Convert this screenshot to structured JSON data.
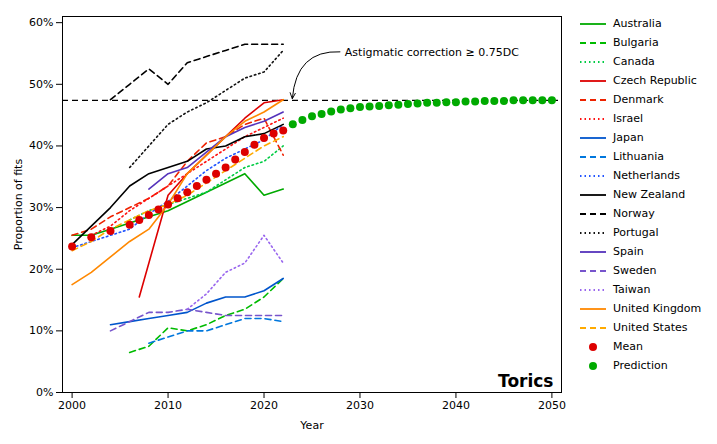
{
  "chart_data": {
    "type": "line",
    "xlabel": "Year",
    "ylabel": "Proportion of fits",
    "xlim": [
      1999,
      2051
    ],
    "ylim": [
      0.0,
      0.61
    ],
    "xticks": [
      2000,
      2010,
      2020,
      2030,
      2040,
      2050
    ],
    "yticks": [
      {
        "value": 0.0,
        "label": "0%"
      },
      {
        "value": 0.1,
        "label": "10%"
      },
      {
        "value": 0.2,
        "label": "20%"
      },
      {
        "value": 0.3,
        "label": "30%"
      },
      {
        "value": 0.4,
        "label": "40%"
      },
      {
        "value": 0.5,
        "label": "50%"
      },
      {
        "value": 0.6,
        "label": "60%"
      }
    ],
    "grid": false,
    "legend": "right",
    "reference_lines": [
      {
        "y": 0.474,
        "color": "#000000",
        "line_style": "dashed"
      }
    ],
    "annotations": [
      {
        "text": "Astigmatic correction ≥ 0.75DC",
        "x": 2023,
        "y": 0.474
      },
      {
        "text": "Torics"
      }
    ],
    "series": [
      {
        "name": "Australia",
        "type": "line",
        "color": "#00aa00",
        "line_style": "solid",
        "x": [
          2000,
          2002,
          2004,
          2006,
          2008,
          2010,
          2012,
          2014,
          2016,
          2018,
          2020,
          2022
        ],
        "values": [
          0.255,
          0.255,
          0.265,
          0.275,
          0.285,
          0.295,
          0.31,
          0.325,
          0.34,
          0.355,
          0.32,
          0.33
        ]
      },
      {
        "name": "Bulgaria",
        "type": "line",
        "color": "#00bb00",
        "line_style": "dashed",
        "x": [
          2006,
          2008,
          2010,
          2012,
          2014,
          2016,
          2018,
          2020,
          2022
        ],
        "values": [
          0.065,
          0.075,
          0.105,
          0.1,
          0.11,
          0.125,
          0.135,
          0.155,
          0.185
        ]
      },
      {
        "name": "Canada",
        "type": "line",
        "color": "#00cc44",
        "line_style": "dotted",
        "x": [
          2006,
          2008,
          2010,
          2012,
          2014,
          2016,
          2018,
          2020,
          2022
        ],
        "values": [
          0.28,
          0.295,
          0.305,
          0.315,
          0.325,
          0.345,
          0.365,
          0.375,
          0.4
        ]
      },
      {
        "name": "Czech Republic",
        "type": "line",
        "color": "#dd0000",
        "line_style": "solid",
        "x": [
          2007,
          2010,
          2012,
          2014,
          2016,
          2018,
          2020,
          2022
        ],
        "values": [
          0.155,
          0.32,
          0.355,
          0.385,
          0.415,
          0.445,
          0.47,
          0.475
        ]
      },
      {
        "name": "Denmark",
        "type": "line",
        "color": "#ee2200",
        "line_style": "dashed",
        "x": [
          2000,
          2002,
          2004,
          2006,
          2008,
          2010,
          2012,
          2014,
          2016,
          2018,
          2020,
          2022
        ],
        "values": [
          0.255,
          0.265,
          0.285,
          0.3,
          0.315,
          0.335,
          0.375,
          0.405,
          0.415,
          0.435,
          0.445,
          0.385
        ]
      },
      {
        "name": "Israel",
        "type": "line",
        "color": "#ff1111",
        "line_style": "dotted",
        "x": [
          2002,
          2004,
          2006,
          2008,
          2010,
          2012,
          2014,
          2016,
          2018,
          2020,
          2022
        ],
        "values": [
          0.255,
          0.27,
          0.295,
          0.315,
          0.335,
          0.355,
          0.375,
          0.395,
          0.415,
          0.43,
          0.445
        ]
      },
      {
        "name": "Japan",
        "type": "line",
        "color": "#0055cc",
        "line_style": "solid",
        "x": [
          2004,
          2006,
          2008,
          2010,
          2012,
          2014,
          2016,
          2018,
          2020,
          2022
        ],
        "values": [
          0.11,
          0.115,
          0.12,
          0.125,
          0.13,
          0.145,
          0.155,
          0.155,
          0.165,
          0.185
        ]
      },
      {
        "name": "Lithuania",
        "type": "line",
        "color": "#0077dd",
        "line_style": "dashed",
        "x": [
          2008,
          2010,
          2012,
          2014,
          2016,
          2018,
          2020,
          2022
        ],
        "values": [
          0.08,
          0.09,
          0.1,
          0.1,
          0.11,
          0.12,
          0.12,
          0.115
        ]
      },
      {
        "name": "Netherlands",
        "type": "line",
        "color": "#2255ff",
        "line_style": "dotted",
        "x": [
          2000,
          2002,
          2004,
          2006,
          2008,
          2010,
          2012,
          2014,
          2016,
          2018,
          2020,
          2022
        ],
        "values": [
          0.235,
          0.245,
          0.255,
          0.265,
          0.29,
          0.31,
          0.335,
          0.36,
          0.38,
          0.395,
          0.41,
          0.435
        ]
      },
      {
        "name": "New Zealand",
        "type": "line",
        "color": "#000000",
        "line_style": "solid",
        "x": [
          2000,
          2002,
          2004,
          2006,
          2008,
          2010,
          2012,
          2014,
          2016,
          2018,
          2020,
          2022
        ],
        "values": [
          0.24,
          0.27,
          0.3,
          0.335,
          0.355,
          0.365,
          0.375,
          0.395,
          0.4,
          0.415,
          0.42,
          0.435
        ]
      },
      {
        "name": "Norway",
        "type": "line",
        "color": "#000000",
        "line_style": "dashed",
        "x": [
          2004,
          2006,
          2008,
          2010,
          2012,
          2014,
          2016,
          2018,
          2020,
          2022
        ],
        "values": [
          0.475,
          0.5,
          0.525,
          0.5,
          0.535,
          0.545,
          0.555,
          0.565,
          0.565,
          0.565
        ]
      },
      {
        "name": "Portugal",
        "type": "line",
        "color": "#111111",
        "line_style": "dotted",
        "x": [
          2006,
          2008,
          2010,
          2012,
          2014,
          2016,
          2018,
          2020,
          2022
        ],
        "values": [
          0.365,
          0.4,
          0.435,
          0.455,
          0.47,
          0.49,
          0.51,
          0.52,
          0.555
        ]
      },
      {
        "name": "Spain",
        "type": "line",
        "color": "#5533bb",
        "line_style": "solid",
        "x": [
          2008,
          2010,
          2012,
          2014,
          2016,
          2018,
          2020,
          2022
        ],
        "values": [
          0.33,
          0.355,
          0.365,
          0.39,
          0.415,
          0.43,
          0.44,
          0.455
        ]
      },
      {
        "name": "Sweden",
        "type": "line",
        "color": "#7755cc",
        "line_style": "dashed",
        "x": [
          2004,
          2006,
          2008,
          2010,
          2012,
          2014,
          2016,
          2018,
          2020,
          2022
        ],
        "values": [
          0.1,
          0.115,
          0.13,
          0.13,
          0.135,
          0.13,
          0.125,
          0.125,
          0.125,
          0.125
        ]
      },
      {
        "name": "Taiwan",
        "type": "line",
        "color": "#9966ee",
        "line_style": "dotted",
        "x": [
          2012,
          2014,
          2016,
          2018,
          2020,
          2022
        ],
        "values": [
          0.135,
          0.16,
          0.195,
          0.21,
          0.255,
          0.21
        ]
      },
      {
        "name": "United Kingdom",
        "type": "line",
        "color": "#ff8800",
        "line_style": "solid",
        "x": [
          2000,
          2002,
          2004,
          2006,
          2008,
          2010,
          2012,
          2014,
          2016,
          2018,
          2020,
          2022
        ],
        "values": [
          0.175,
          0.195,
          0.22,
          0.245,
          0.265,
          0.305,
          0.355,
          0.385,
          0.415,
          0.44,
          0.455,
          0.475
        ]
      },
      {
        "name": "United States",
        "type": "line",
        "color": "#ffaa00",
        "line_style": "dashed",
        "x": [
          2000,
          2002,
          2004,
          2006,
          2008,
          2010,
          2012,
          2014,
          2016,
          2018,
          2020,
          2022
        ],
        "values": [
          0.23,
          0.245,
          0.265,
          0.28,
          0.295,
          0.305,
          0.32,
          0.34,
          0.36,
          0.38,
          0.4,
          0.415
        ]
      },
      {
        "name": "Mean",
        "type": "scatter",
        "marker": "circle",
        "color": "#dd0000",
        "x": [
          2000,
          2002,
          2004,
          2006,
          2007,
          2008,
          2009,
          2010,
          2011,
          2012,
          2013,
          2014,
          2015,
          2016,
          2017,
          2018,
          2019,
          2020,
          2021,
          2022
        ],
        "values": [
          0.237,
          0.252,
          0.262,
          0.272,
          0.28,
          0.288,
          0.297,
          0.305,
          0.315,
          0.325,
          0.335,
          0.345,
          0.355,
          0.365,
          0.378,
          0.39,
          0.402,
          0.413,
          0.42,
          0.425
        ]
      },
      {
        "name": "Prediction",
        "type": "scatter",
        "marker": "circle",
        "color": "#00aa00",
        "x": [
          2023,
          2024,
          2025,
          2026,
          2027,
          2028,
          2029,
          2030,
          2031,
          2032,
          2033,
          2034,
          2035,
          2036,
          2037,
          2038,
          2039,
          2040,
          2041,
          2042,
          2043,
          2044,
          2045,
          2046,
          2047,
          2048,
          2049,
          2050
        ],
        "values": [
          0.435,
          0.442,
          0.448,
          0.452,
          0.456,
          0.459,
          0.461,
          0.463,
          0.464,
          0.465,
          0.466,
          0.467,
          0.468,
          0.469,
          0.47,
          0.47,
          0.471,
          0.471,
          0.472,
          0.472,
          0.473,
          0.473,
          0.473,
          0.474,
          0.474,
          0.474,
          0.474,
          0.474
        ]
      }
    ]
  }
}
